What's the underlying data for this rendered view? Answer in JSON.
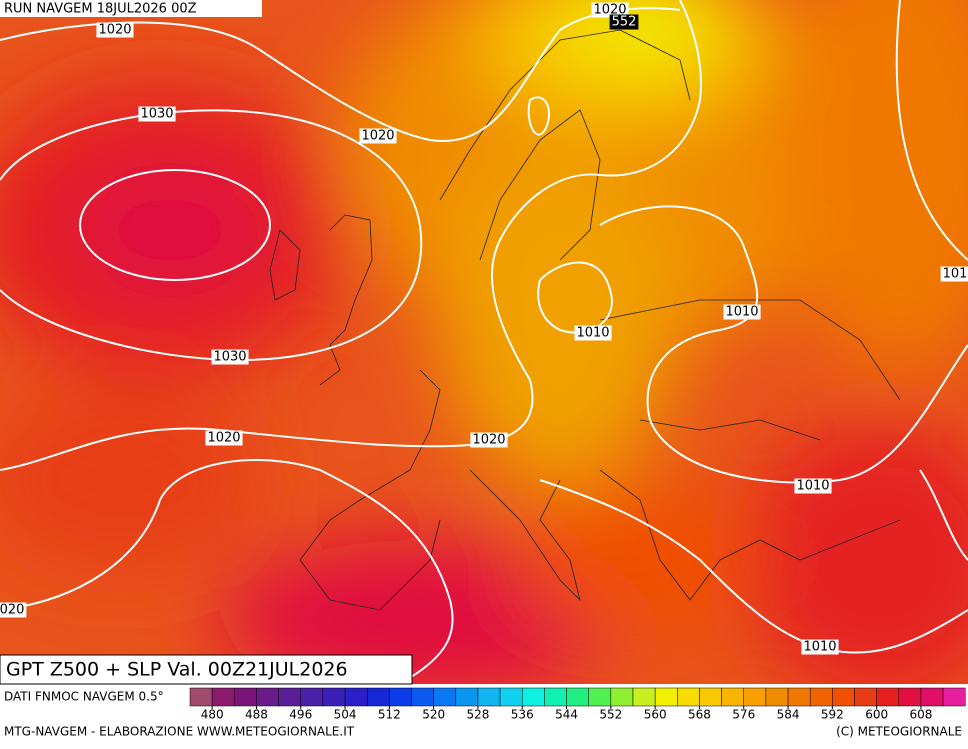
{
  "header": {
    "run": "RUN NAVGEM 18JUL2026 00Z"
  },
  "map": {
    "contour_labels": [
      "1020",
      "1030",
      "1020",
      "1030",
      "1020",
      "1020",
      "1010",
      "1010",
      "1010",
      "1010",
      "101",
      "020",
      "1020"
    ],
    "height_label": "552"
  },
  "title": "GPT Z500 + SLP Val. 00Z21JUL2026",
  "legend": {
    "caption": "DATI FNMOC NAVGEM 0.5°",
    "colors": [
      "#a04a6e",
      "#8c1a6e",
      "#7a1478",
      "#6a1a8a",
      "#5a1e96",
      "#4a20a8",
      "#3a20b8",
      "#2a20c8",
      "#1428d8",
      "#0a3ce8",
      "#0a5af0",
      "#0a78f0",
      "#0a96f0",
      "#10b4f0",
      "#10d2f0",
      "#10f0e0",
      "#10f0b0",
      "#20f080",
      "#50f050",
      "#90f030",
      "#c8f020",
      "#f0f000",
      "#f8dc00",
      "#f8c800",
      "#f8b400",
      "#f8a000",
      "#f08c00",
      "#f07800",
      "#f06400",
      "#f05000",
      "#e83c14",
      "#e42020",
      "#e01040",
      "#e0106a",
      "#e81ea0"
    ],
    "ticks": [
      480,
      488,
      496,
      504,
      512,
      520,
      528,
      536,
      544,
      552,
      560,
      568,
      576,
      584,
      592,
      600,
      608
    ]
  },
  "footer": {
    "left": "MTG-NAVGEM - ELABORAZIONE WWW.METEOGIORNALE.IT",
    "right": "(C) METEOGIORNALE"
  }
}
